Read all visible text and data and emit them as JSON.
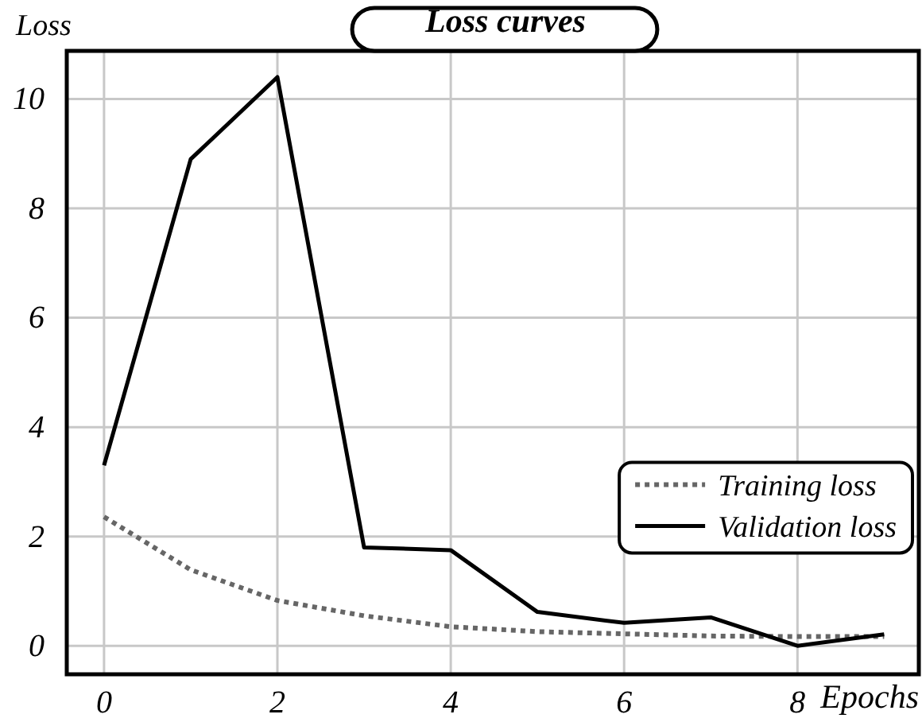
{
  "chart_data": {
    "type": "line",
    "title": "Loss curves",
    "xlabel": "Epochs",
    "ylabel": "Loss",
    "x": [
      0,
      1,
      2,
      3,
      4,
      5,
      6,
      7,
      8,
      9
    ],
    "series": [
      {
        "name": "Training loss",
        "color": "#666666",
        "line_style": "dotted",
        "values": [
          2.36,
          1.39,
          0.83,
          0.55,
          0.35,
          0.26,
          0.22,
          0.18,
          0.17,
          0.17
        ]
      },
      {
        "name": "Validation loss",
        "color": "#000000",
        "line_style": "solid",
        "values": [
          3.3,
          8.9,
          10.4,
          1.8,
          1.75,
          0.62,
          0.42,
          0.52,
          0.0,
          0.21
        ]
      }
    ],
    "xlim": [
      -0.43,
      9.4
    ],
    "ylim": [
      -0.52,
      10.88
    ],
    "xticks": [
      0,
      2,
      4,
      6,
      8
    ],
    "yticks": [
      0,
      2,
      4,
      6,
      8,
      10
    ],
    "grid": true,
    "legend": "right",
    "marker": "none"
  }
}
